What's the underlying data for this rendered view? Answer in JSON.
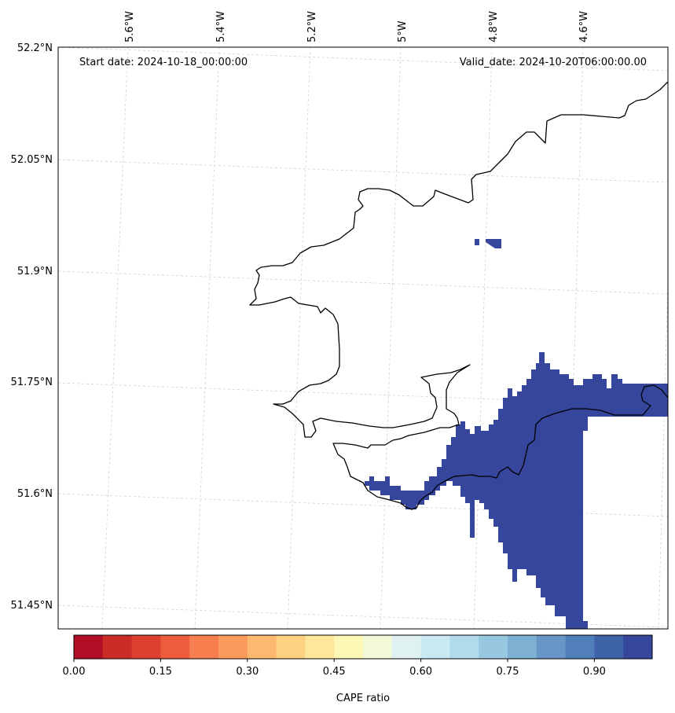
{
  "header": {
    "start_date": "Start date: 2024-10-18_00:00:00",
    "valid_date": "Valid_date: 2024-10-20T06:00:00.00"
  },
  "map": {
    "lon_ticks": [
      "5.6°W",
      "5.4°W",
      "5.2°W",
      "5°W",
      "4.8°W",
      "4.6°W"
    ],
    "lat_ticks": [
      "52.2°N",
      "52.05°N",
      "51.9°N",
      "51.75°N",
      "51.6°N",
      "51.45°N"
    ],
    "fill_color": "#36469c",
    "coastline_color": "#000000",
    "gridlines": true
  },
  "colorbar": {
    "label": "CAPE ratio",
    "tick_labels": [
      "0.00",
      "0.15",
      "0.30",
      "0.45",
      "0.60",
      "0.75",
      "0.90"
    ],
    "colors": [
      "#b40e27",
      "#cc2b26",
      "#dd4031",
      "#ec5c3d",
      "#f77f4f",
      "#fa9b5c",
      "#fdb870",
      "#fed283",
      "#fee79b",
      "#fef8b6",
      "#f2f9d8",
      "#dff2f1",
      "#caeaf3",
      "#b1dbeb",
      "#98c7e0",
      "#7eb0d4",
      "#6897c7",
      "#517fbb",
      "#3f63a9",
      "#36469c"
    ]
  }
}
